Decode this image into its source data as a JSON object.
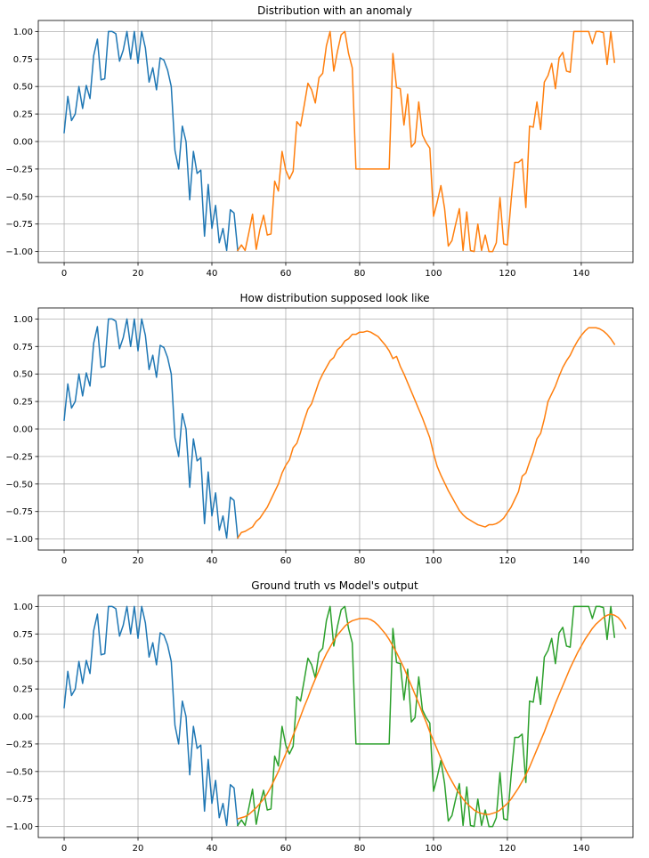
{
  "colors": {
    "c0": "#1f77b4",
    "c1": "#ff7f0e",
    "c2": "#2ca02c"
  },
  "chart_data": [
    {
      "type": "line",
      "title": "Distribution with an anomaly",
      "xlim": [
        -7,
        154
      ],
      "ylim": [
        -1.1,
        1.1
      ],
      "xticks": [
        0,
        20,
        40,
        60,
        80,
        100,
        120,
        140
      ],
      "yticks": [
        -1.0,
        -0.75,
        -0.5,
        -0.25,
        0.0,
        0.25,
        0.5,
        0.75,
        1.0
      ],
      "ytick_labels": [
        "−1.00",
        "−0.75",
        "−0.50",
        "−0.25",
        "0.00",
        "0.25",
        "0.50",
        "0.75",
        "1.00"
      ],
      "grid": true,
      "series": [
        {
          "color": "#1f77b4",
          "x_start": 0,
          "values": [
            0.08,
            0.41,
            0.19,
            0.25,
            0.5,
            0.3,
            0.51,
            0.39,
            0.78,
            0.93,
            0.56,
            0.57,
            1.0,
            1.0,
            0.98,
            0.73,
            0.83,
            1.0,
            0.75,
            1.0,
            0.71,
            1.0,
            0.85,
            0.54,
            0.67,
            0.47,
            0.76,
            0.74,
            0.65,
            0.5,
            -0.08,
            -0.25,
            0.14,
            0.0,
            -0.53,
            -0.09,
            -0.29,
            -0.26,
            -0.86,
            -0.39,
            -0.79,
            -0.58,
            -0.92,
            -0.79,
            -0.99,
            -0.62,
            -0.65,
            -0.99
          ]
        },
        {
          "color": "#ff7f0e",
          "x_start": 47,
          "values": [
            -0.99,
            -0.94,
            -0.99,
            -0.83,
            -0.66,
            -0.98,
            -0.8,
            -0.67,
            -0.85,
            -0.84,
            -0.36,
            -0.45,
            -0.09,
            -0.26,
            -0.34,
            -0.27,
            0.18,
            0.14,
            0.33,
            0.53,
            0.47,
            0.35,
            0.58,
            0.62,
            0.87,
            1.0,
            0.64,
            0.82,
            0.97,
            1.0,
            0.8,
            0.67,
            -0.25,
            -0.25,
            -0.25,
            -0.25,
            -0.25,
            -0.25,
            -0.25,
            -0.25,
            -0.25,
            -0.25,
            0.8,
            0.49,
            0.48,
            0.15,
            0.43,
            -0.05,
            -0.01,
            0.36,
            0.06,
            -0.01,
            -0.06,
            -0.68,
            -0.55,
            -0.4,
            -0.61,
            -0.95,
            -0.9,
            -0.75,
            -0.61,
            -0.99,
            -0.64,
            -0.99,
            -1.0,
            -0.75,
            -0.99,
            -0.85,
            -1.0,
            -1.0,
            -0.92,
            -0.51,
            -0.93,
            -0.94,
            -0.54,
            -0.19,
            -0.19,
            -0.16,
            -0.6,
            0.14,
            0.13,
            0.36,
            0.11,
            0.54,
            0.6,
            0.71,
            0.48,
            0.76,
            0.81,
            0.64,
            0.63,
            1.0,
            1.0,
            1.0,
            1.0,
            1.0,
            0.89,
            1.0,
            1.0,
            0.99,
            0.7,
            1.0,
            0.72
          ]
        }
      ]
    },
    {
      "type": "line",
      "title": "How distribution supposed look like",
      "xlim": [
        -7,
        154
      ],
      "ylim": [
        -1.1,
        1.1
      ],
      "xticks": [
        0,
        20,
        40,
        60,
        80,
        100,
        120,
        140
      ],
      "yticks": [
        -1.0,
        -0.75,
        -0.5,
        -0.25,
        0.0,
        0.25,
        0.5,
        0.75,
        1.0
      ],
      "ytick_labels": [
        "−1.00",
        "−0.75",
        "−0.50",
        "−0.25",
        "0.00",
        "0.25",
        "0.50",
        "0.75",
        "1.00"
      ],
      "grid": true,
      "series": [
        {
          "color": "#1f77b4",
          "x_start": 0,
          "values": [
            0.08,
            0.41,
            0.19,
            0.25,
            0.5,
            0.3,
            0.51,
            0.39,
            0.78,
            0.93,
            0.56,
            0.57,
            1.0,
            1.0,
            0.98,
            0.73,
            0.83,
            1.0,
            0.75,
            1.0,
            0.71,
            1.0,
            0.85,
            0.54,
            0.67,
            0.47,
            0.76,
            0.74,
            0.65,
            0.5,
            -0.08,
            -0.25,
            0.14,
            0.0,
            -0.53,
            -0.09,
            -0.29,
            -0.26,
            -0.86,
            -0.39,
            -0.79,
            -0.58,
            -0.92,
            -0.79,
            -0.99,
            -0.62,
            -0.65,
            -0.99
          ]
        },
        {
          "color": "#ff7f0e",
          "x_start": 47,
          "values": [
            -0.99,
            -0.94,
            -0.93,
            -0.91,
            -0.89,
            -0.84,
            -0.81,
            -0.76,
            -0.71,
            -0.64,
            -0.57,
            -0.5,
            -0.4,
            -0.33,
            -0.28,
            -0.17,
            -0.13,
            -0.03,
            0.08,
            0.18,
            0.23,
            0.33,
            0.43,
            0.5,
            0.56,
            0.62,
            0.65,
            0.72,
            0.75,
            0.8,
            0.82,
            0.86,
            0.86,
            0.88,
            0.88,
            0.89,
            0.88,
            0.86,
            0.84,
            0.8,
            0.76,
            0.71,
            0.64,
            0.66,
            0.57,
            0.5,
            0.42,
            0.34,
            0.26,
            0.18,
            0.1,
            0.01,
            -0.08,
            -0.22,
            -0.34,
            -0.42,
            -0.49,
            -0.56,
            -0.62,
            -0.68,
            -0.74,
            -0.78,
            -0.81,
            -0.83,
            -0.85,
            -0.87,
            -0.88,
            -0.89,
            -0.87,
            -0.87,
            -0.86,
            -0.84,
            -0.81,
            -0.76,
            -0.71,
            -0.64,
            -0.57,
            -0.43,
            -0.4,
            -0.3,
            -0.21,
            -0.09,
            -0.04,
            0.09,
            0.25,
            0.32,
            0.39,
            0.48,
            0.56,
            0.62,
            0.67,
            0.74,
            0.8,
            0.85,
            0.89,
            0.92,
            0.92,
            0.92,
            0.91,
            0.89,
            0.86,
            0.82,
            0.77
          ]
        }
      ]
    },
    {
      "type": "line",
      "title": "Ground truth vs Model's output",
      "xlim": [
        -7,
        154
      ],
      "ylim": [
        -1.1,
        1.1
      ],
      "xticks": [
        0,
        20,
        40,
        60,
        80,
        100,
        120,
        140
      ],
      "yticks": [
        -1.0,
        -0.75,
        -0.5,
        -0.25,
        0.0,
        0.25,
        0.5,
        0.75,
        1.0
      ],
      "ytick_labels": [
        "−1.00",
        "−0.75",
        "−0.50",
        "−0.25",
        "0.00",
        "0.25",
        "0.50",
        "0.75",
        "1.00"
      ],
      "grid": true,
      "series": [
        {
          "color": "#1f77b4",
          "x_start": 0,
          "values": [
            0.08,
            0.41,
            0.19,
            0.25,
            0.5,
            0.3,
            0.51,
            0.39,
            0.78,
            0.93,
            0.56,
            0.57,
            1.0,
            1.0,
            0.98,
            0.73,
            0.83,
            1.0,
            0.75,
            1.0,
            0.71,
            1.0,
            0.85,
            0.54,
            0.67,
            0.47,
            0.76,
            0.74,
            0.65,
            0.5,
            -0.08,
            -0.25,
            0.14,
            0.0,
            -0.53,
            -0.09,
            -0.29,
            -0.26,
            -0.86,
            -0.39,
            -0.79,
            -0.58,
            -0.92,
            -0.79,
            -0.99,
            -0.62,
            -0.65,
            -0.99
          ]
        },
        {
          "color": "#2ca02c",
          "x_start": 47,
          "values": [
            -0.99,
            -0.94,
            -0.99,
            -0.83,
            -0.66,
            -0.98,
            -0.8,
            -0.67,
            -0.85,
            -0.84,
            -0.36,
            -0.45,
            -0.09,
            -0.26,
            -0.34,
            -0.27,
            0.18,
            0.14,
            0.33,
            0.53,
            0.47,
            0.35,
            0.58,
            0.62,
            0.87,
            1.0,
            0.64,
            0.82,
            0.97,
            1.0,
            0.8,
            0.67,
            -0.25,
            -0.25,
            -0.25,
            -0.25,
            -0.25,
            -0.25,
            -0.25,
            -0.25,
            -0.25,
            -0.25,
            0.8,
            0.49,
            0.48,
            0.15,
            0.43,
            -0.05,
            -0.01,
            0.36,
            0.06,
            -0.01,
            -0.06,
            -0.68,
            -0.55,
            -0.4,
            -0.61,
            -0.95,
            -0.9,
            -0.75,
            -0.61,
            -0.99,
            -0.64,
            -0.99,
            -1.0,
            -0.75,
            -0.99,
            -0.85,
            -1.0,
            -1.0,
            -0.92,
            -0.51,
            -0.93,
            -0.94,
            -0.54,
            -0.19,
            -0.19,
            -0.16,
            -0.6,
            0.14,
            0.13,
            0.36,
            0.11,
            0.54,
            0.6,
            0.71,
            0.48,
            0.76,
            0.81,
            0.64,
            0.63,
            1.0,
            1.0,
            1.0,
            1.0,
            1.0,
            0.89,
            1.0,
            1.0,
            0.99,
            0.7,
            1.0,
            0.72
          ]
        },
        {
          "color": "#ff7f0e",
          "x_start": 47,
          "values": [
            -0.93,
            -0.92,
            -0.91,
            -0.89,
            -0.86,
            -0.83,
            -0.79,
            -0.75,
            -0.7,
            -0.64,
            -0.57,
            -0.5,
            -0.42,
            -0.34,
            -0.26,
            -0.17,
            -0.09,
            0.0,
            0.09,
            0.17,
            0.26,
            0.34,
            0.42,
            0.5,
            0.57,
            0.63,
            0.69,
            0.74,
            0.78,
            0.82,
            0.85,
            0.87,
            0.88,
            0.89,
            0.89,
            0.89,
            0.88,
            0.86,
            0.83,
            0.79,
            0.75,
            0.7,
            0.64,
            0.58,
            0.51,
            0.44,
            0.36,
            0.28,
            0.2,
            0.12,
            0.03,
            -0.05,
            -0.14,
            -0.22,
            -0.3,
            -0.38,
            -0.46,
            -0.53,
            -0.59,
            -0.65,
            -0.7,
            -0.75,
            -0.79,
            -0.82,
            -0.85,
            -0.87,
            -0.88,
            -0.89,
            -0.89,
            -0.88,
            -0.87,
            -0.85,
            -0.82,
            -0.79,
            -0.75,
            -0.7,
            -0.65,
            -0.59,
            -0.53,
            -0.46,
            -0.38,
            -0.3,
            -0.22,
            -0.14,
            -0.05,
            0.03,
            0.12,
            0.2,
            0.28,
            0.36,
            0.44,
            0.51,
            0.58,
            0.64,
            0.7,
            0.75,
            0.8,
            0.84,
            0.87,
            0.9,
            0.92,
            0.93,
            0.92,
            0.9,
            0.86,
            0.8
          ]
        }
      ]
    }
  ]
}
